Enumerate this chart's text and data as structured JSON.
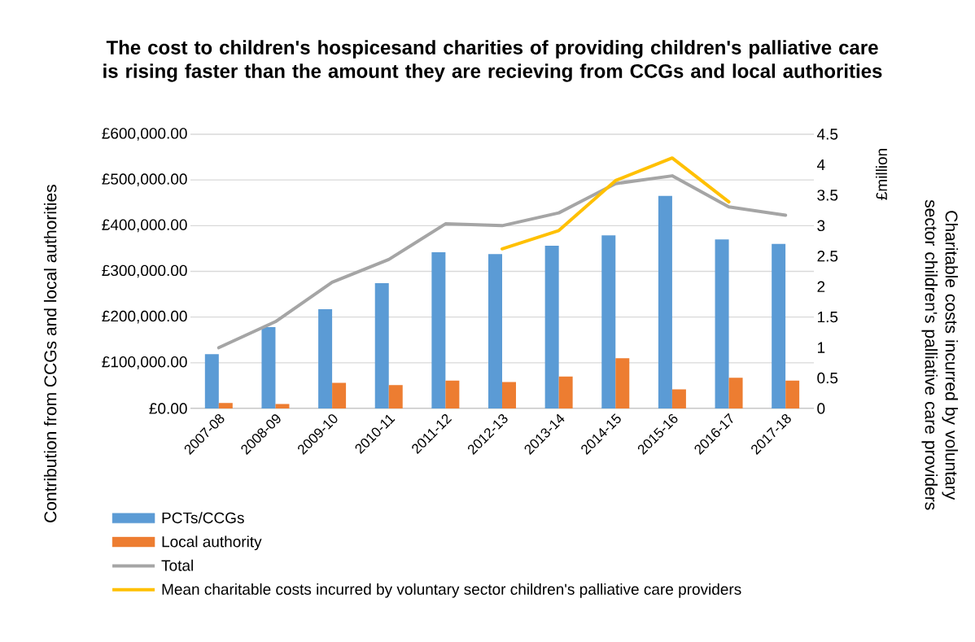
{
  "chart_data": {
    "type": "bar",
    "title": "The cost to children's hospicesand charities of providing children's palliative care is rising faster than the amount they are recieving from CCGs and local authorities",
    "ylabel": "Contribution from CCGs and local authorities",
    "y2label": "Charitable costs incurred by voluntary sector children's palliative care providers",
    "annotations": [
      "£million"
    ],
    "categories": [
      "2007-08",
      "2008-09",
      "2009-10",
      "2010-11",
      "2011-12",
      "2012-13",
      "2013-14",
      "2014-15",
      "2015-16",
      "2016-17",
      "2017-18"
    ],
    "series": [
      {
        "name": "PCTs/CCGs",
        "color": "#5b9bd5",
        "values": [
          119000,
          178000,
          217000,
          274000,
          342000,
          338000,
          356000,
          379000,
          465000,
          370000,
          360000
        ]
      },
      {
        "name": "Local authority",
        "color": "#ed7d31",
        "values": [
          12000,
          10000,
          56000,
          51000,
          61000,
          58000,
          70000,
          110000,
          42000,
          67000,
          61000
        ]
      },
      {
        "name": "Total",
        "type": "line",
        "color": "#a5a5a5",
        "values": [
          133000,
          190000,
          276000,
          326000,
          404000,
          400000,
          428000,
          492000,
          509000,
          441000,
          423000
        ]
      },
      {
        "name": "Mean charitable costs incurred by voluntary sector children's palliative care providers",
        "type": "line",
        "axis": "y2",
        "color": "#ffc000",
        "values": [
          null,
          null,
          null,
          null,
          null,
          2.62,
          2.92,
          3.74,
          4.11,
          3.39,
          null
        ]
      }
    ],
    "ylim": [
      0,
      600000
    ],
    "yticks": [
      {
        "value": 0,
        "label": "£0.00"
      },
      {
        "value": 100000,
        "label": "£100,000.00"
      },
      {
        "value": 200000,
        "label": "£200,000.00"
      },
      {
        "value": 300000,
        "label": "£300,000.00"
      },
      {
        "value": 400000,
        "label": "£400,000.00"
      },
      {
        "value": 500000,
        "label": "£500,000.00"
      },
      {
        "value": 600000,
        "label": "£600,000.00"
      }
    ],
    "y2lim": [
      0,
      4.5
    ],
    "y2ticks": [
      0,
      0.5,
      1,
      1.5,
      2,
      2.5,
      3,
      3.5,
      4,
      4.5
    ],
    "grid": "y",
    "legend": "bottom"
  }
}
